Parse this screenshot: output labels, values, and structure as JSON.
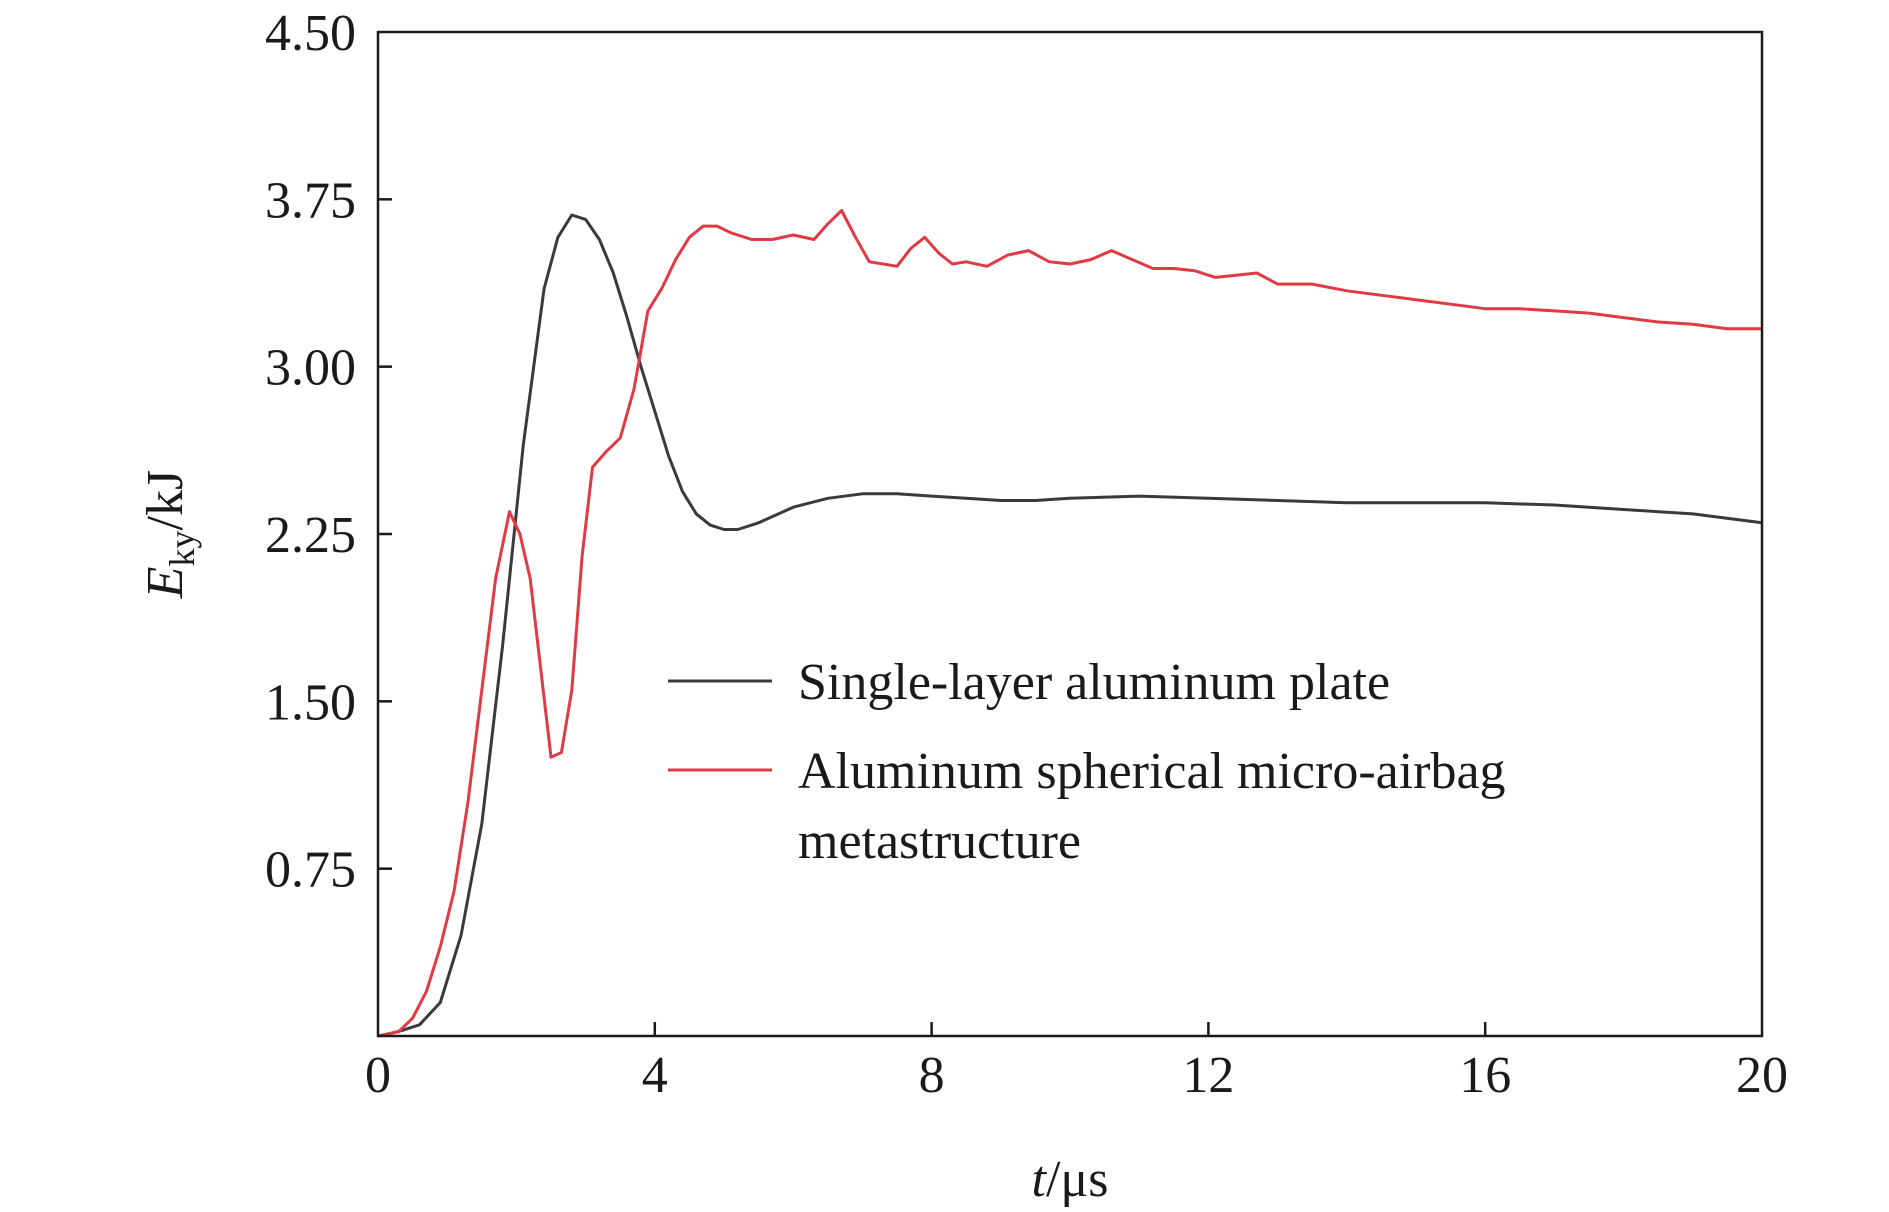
{
  "chart_data": {
    "type": "line",
    "title": "",
    "xlabel": {
      "var": "t",
      "unit": "/μs"
    },
    "ylabel": {
      "var": "E",
      "sub": "ky",
      "unit": "/kJ"
    },
    "xlim": [
      0,
      20
    ],
    "ylim": [
      0,
      4.5
    ],
    "xticks": [
      "0",
      "4",
      "8",
      "12",
      "16",
      "20"
    ],
    "xtick_values": [
      0,
      4,
      8,
      12,
      16,
      20
    ],
    "yticks": [
      "0.75",
      "1.50",
      "2.25",
      "3.00",
      "3.75",
      "4.50"
    ],
    "ytick_values": [
      0.75,
      1.5,
      2.25,
      3.0,
      3.75,
      4.5
    ],
    "grid": false,
    "legend_position": "center-right",
    "series": [
      {
        "name": "Single-layer aluminum plate",
        "color": "#3a3a3a",
        "x": [
          0,
          0.3,
          0.6,
          0.9,
          1.2,
          1.5,
          1.8,
          2.1,
          2.4,
          2.6,
          2.8,
          3.0,
          3.2,
          3.4,
          3.6,
          3.8,
          4.0,
          4.2,
          4.4,
          4.6,
          4.8,
          5.0,
          5.2,
          5.5,
          6.0,
          6.5,
          7.0,
          7.5,
          8.0,
          8.5,
          9.0,
          9.5,
          10.0,
          11.0,
          12.0,
          13.0,
          14.0,
          15.0,
          16.0,
          17.0,
          18.0,
          19.0,
          20.0
        ],
        "y": [
          0,
          0.02,
          0.05,
          0.15,
          0.45,
          0.95,
          1.75,
          2.65,
          3.35,
          3.58,
          3.68,
          3.66,
          3.57,
          3.42,
          3.22,
          3.0,
          2.8,
          2.6,
          2.44,
          2.34,
          2.29,
          2.27,
          2.27,
          2.3,
          2.37,
          2.41,
          2.43,
          2.43,
          2.42,
          2.41,
          2.4,
          2.4,
          2.41,
          2.42,
          2.41,
          2.4,
          2.39,
          2.39,
          2.39,
          2.38,
          2.36,
          2.34,
          2.3
        ]
      },
      {
        "name": "Aluminum spherical micro-airbag metastructure",
        "color": "#e03a45",
        "x": [
          0,
          0.3,
          0.5,
          0.7,
          0.9,
          1.1,
          1.3,
          1.5,
          1.7,
          1.9,
          2.05,
          2.2,
          2.35,
          2.5,
          2.65,
          2.8,
          2.95,
          3.1,
          3.3,
          3.5,
          3.7,
          3.9,
          4.1,
          4.3,
          4.5,
          4.7,
          4.9,
          5.1,
          5.4,
          5.7,
          6.0,
          6.3,
          6.5,
          6.7,
          6.9,
          7.1,
          7.3,
          7.5,
          7.7,
          7.9,
          8.1,
          8.3,
          8.5,
          8.8,
          9.1,
          9.4,
          9.7,
          10.0,
          10.3,
          10.6,
          10.9,
          11.2,
          11.5,
          11.8,
          12.1,
          12.4,
          12.7,
          13.0,
          13.5,
          14.0,
          14.5,
          15.0,
          15.5,
          16.0,
          16.5,
          17.0,
          17.5,
          18.0,
          18.5,
          19.0,
          19.5,
          20.0
        ],
        "y": [
          0,
          0.02,
          0.08,
          0.2,
          0.4,
          0.65,
          1.05,
          1.55,
          2.05,
          2.35,
          2.25,
          2.05,
          1.65,
          1.25,
          1.27,
          1.55,
          2.15,
          2.55,
          2.62,
          2.68,
          2.9,
          3.25,
          3.35,
          3.48,
          3.58,
          3.63,
          3.63,
          3.6,
          3.57,
          3.57,
          3.59,
          3.57,
          3.64,
          3.7,
          3.58,
          3.47,
          3.46,
          3.45,
          3.53,
          3.58,
          3.51,
          3.46,
          3.47,
          3.45,
          3.5,
          3.52,
          3.47,
          3.46,
          3.48,
          3.52,
          3.48,
          3.44,
          3.44,
          3.43,
          3.4,
          3.41,
          3.42,
          3.37,
          3.37,
          3.34,
          3.32,
          3.3,
          3.28,
          3.26,
          3.26,
          3.25,
          3.24,
          3.22,
          3.2,
          3.19,
          3.17,
          3.17
        ]
      }
    ]
  }
}
